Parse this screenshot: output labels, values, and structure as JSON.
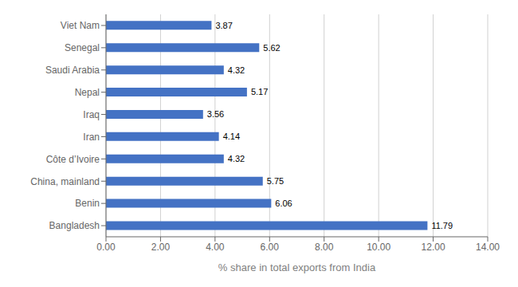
{
  "chart_data": {
    "type": "bar",
    "orientation": "horizontal",
    "categories": [
      "Viet Nam",
      "Senegal",
      "Saudi Arabia",
      "Nepal",
      "Iraq",
      "Iran",
      "Côte d’Ivoire",
      "China, mainland",
      "Benin",
      "Bangladesh"
    ],
    "values": [
      3.87,
      5.62,
      4.32,
      5.17,
      3.56,
      4.14,
      4.32,
      5.75,
      6.06,
      11.79
    ],
    "color": "#4472C4",
    "xlabel": "% share in total exports from India",
    "xlim": [
      0,
      14.0
    ],
    "xticks": [
      {
        "value": 0.0,
        "label": "0.00"
      },
      {
        "value": 2.0,
        "label": "2.00"
      },
      {
        "value": 4.0,
        "label": "4.00"
      },
      {
        "value": 6.0,
        "label": "6.00"
      },
      {
        "value": 8.0,
        "label": "8.00"
      },
      {
        "value": 10.0,
        "label": "10.00"
      },
      {
        "value": 12.0,
        "label": "12.00"
      },
      {
        "value": 14.0,
        "label": "14.00"
      }
    ],
    "grid": true,
    "data_labels": true
  }
}
